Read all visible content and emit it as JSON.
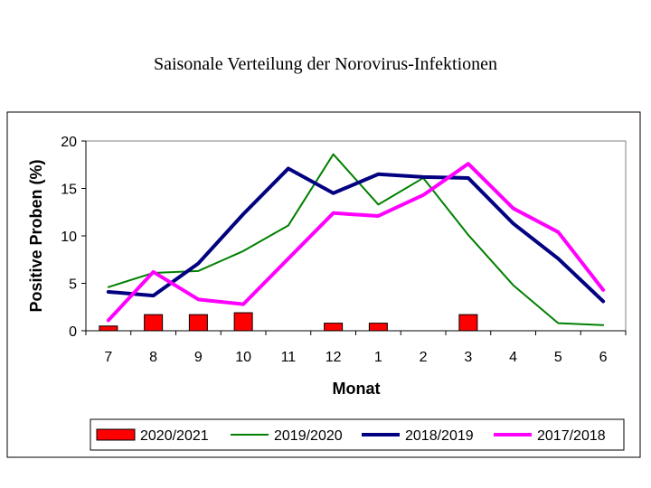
{
  "chart_data": {
    "type": "bar+line",
    "title": "Saisonale Verteilung der Norovirus-Infektionen",
    "xlabel": "Monat",
    "ylabel": "Positive Proben (%)",
    "ylim": [
      0,
      20
    ],
    "yticks": [
      0,
      5,
      10,
      15,
      20
    ],
    "categories": [
      "7",
      "8",
      "9",
      "10",
      "11",
      "12",
      "1",
      "2",
      "3",
      "4",
      "5",
      "6"
    ],
    "grid": false,
    "legend_position": "bottom",
    "series": [
      {
        "name": "2020/2021",
        "kind": "bar",
        "color": "#ff0000",
        "values": [
          0.5,
          1.7,
          1.7,
          1.9,
          0,
          0.8,
          0.8,
          0,
          1.7,
          0,
          0,
          0
        ]
      },
      {
        "name": "2019/2020",
        "kind": "line",
        "color": "#008000",
        "values": [
          4.6,
          6.1,
          6.3,
          8.4,
          11.1,
          18.6,
          13.3,
          16.1,
          10.1,
          4.8,
          0.8,
          0.6
        ]
      },
      {
        "name": "2018/2019",
        "kind": "line",
        "color": "#000080",
        "values": [
          4.1,
          3.7,
          7.1,
          12.3,
          17.1,
          14.5,
          16.5,
          16.2,
          16.1,
          11.3,
          7.6,
          3.1
        ]
      },
      {
        "name": "2017/2018",
        "kind": "line",
        "color": "#ff00ff",
        "values": [
          1.1,
          6.2,
          3.3,
          2.8,
          7.6,
          12.4,
          12.1,
          14.3,
          17.6,
          12.9,
          10.4,
          4.3
        ]
      }
    ]
  }
}
